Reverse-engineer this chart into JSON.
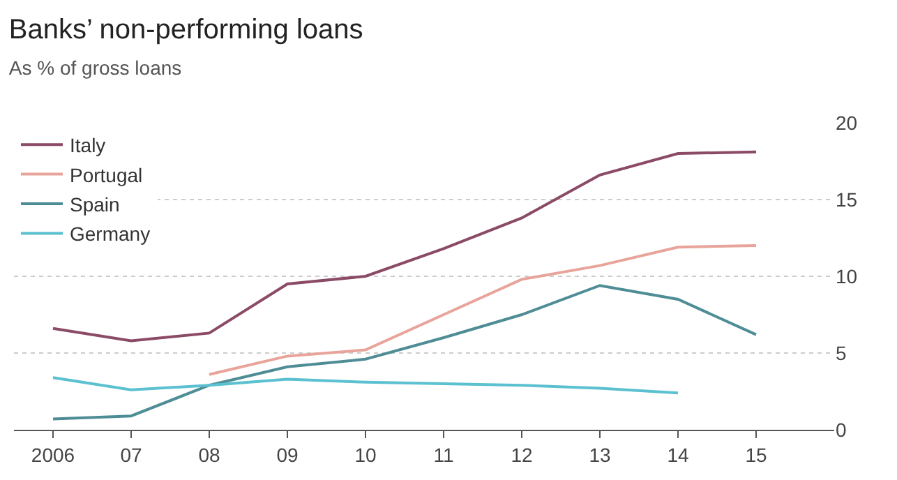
{
  "chart_data": {
    "type": "line",
    "title": "Banks’ non-performing loans",
    "subtitle": "As % of gross loans",
    "x": [
      2006,
      2007,
      2008,
      2009,
      2010,
      2011,
      2012,
      2013,
      2014,
      2015
    ],
    "series": [
      {
        "name": "Italy",
        "color": "#8b4a66",
        "values": [
          6.6,
          5.8,
          6.3,
          9.5,
          10.0,
          11.8,
          13.8,
          16.6,
          18.0,
          18.1
        ]
      },
      {
        "name": "Portugal",
        "color": "#e8a49a",
        "values": [
          null,
          null,
          3.6,
          4.8,
          5.2,
          7.5,
          9.8,
          10.7,
          11.9,
          12.0
        ]
      },
      {
        "name": "Spain",
        "color": "#4f8d96",
        "values": [
          0.7,
          0.9,
          2.9,
          4.1,
          4.6,
          6.0,
          7.5,
          9.4,
          8.5,
          6.2
        ]
      },
      {
        "name": "Germany",
        "color": "#5bc0d0",
        "x": [
          2006,
          2007,
          2008,
          2009,
          2010,
          2011,
          2012,
          2013,
          2014
        ],
        "values": [
          3.4,
          2.6,
          2.9,
          3.3,
          3.1,
          3.0,
          2.9,
          2.7,
          2.4
        ]
      }
    ],
    "xlim": [
      2005.5,
      2016.0
    ],
    "xticks": [
      {
        "value": 2006,
        "label": "2006"
      },
      {
        "value": 2007,
        "label": "07"
      },
      {
        "value": 2008,
        "label": "08"
      },
      {
        "value": 2009,
        "label": "09"
      },
      {
        "value": 2010,
        "label": "10"
      },
      {
        "value": 2011,
        "label": "11"
      },
      {
        "value": 2012,
        "label": "12"
      },
      {
        "value": 2013,
        "label": "13"
      },
      {
        "value": 2014,
        "label": "14"
      },
      {
        "value": 2015,
        "label": "15"
      }
    ],
    "ylim": [
      0,
      20
    ],
    "yticks": [
      0,
      5,
      10,
      15,
      20
    ],
    "grid": "y",
    "legend": "top left",
    "marker": "none",
    "line_style": "solid"
  }
}
